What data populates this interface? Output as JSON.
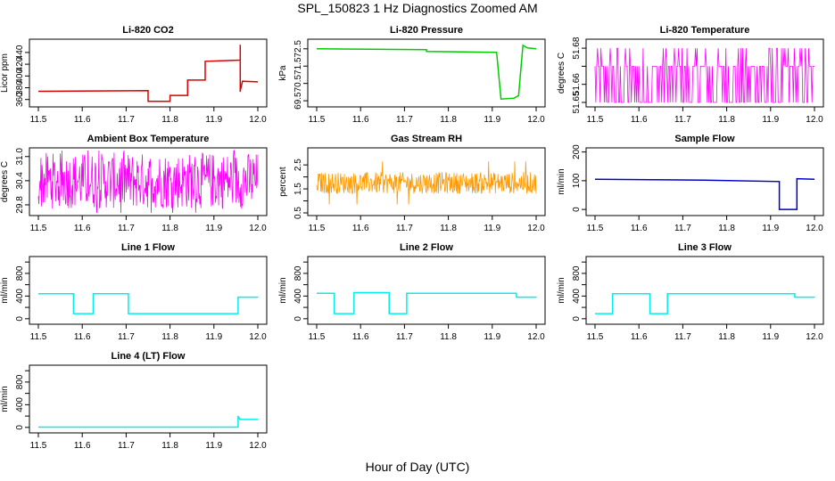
{
  "figure": {
    "title": "SPL_150823 1 Hz Diagnostics Zoomed AM",
    "xlabel": "Hour of Day (UTC)"
  },
  "chart_data": [
    {
      "type": "line",
      "title": "Li-820 CO2",
      "ylabel": "Licor ppm",
      "color": "#dd0000",
      "xlim": [
        11.5,
        12.0
      ],
      "ylim": [
        352,
        458
      ],
      "yticks": [
        "360",
        "380",
        "400",
        "420",
        "440"
      ],
      "xticks": [
        "11.5",
        "11.6",
        "11.7",
        "11.8",
        "11.9",
        "12.0"
      ],
      "x": [
        11.5,
        11.75,
        11.75,
        11.8,
        11.8,
        11.84,
        11.84,
        11.88,
        11.88,
        11.96,
        11.96,
        11.96,
        11.96,
        11.965,
        11.965,
        12.0
      ],
      "y": [
        374,
        375,
        357,
        357,
        367,
        367,
        393,
        393,
        425,
        427,
        453,
        373,
        375,
        391,
        391,
        390
      ]
    },
    {
      "type": "line",
      "title": "Li-820 Pressure",
      "ylabel": "kPa",
      "color": "#00cc00",
      "xlim": [
        11.5,
        12.0
      ],
      "ylim": [
        69.3,
        72.9
      ],
      "yticks": [
        "69.5",
        "70.5",
        "71.5",
        "72.5"
      ],
      "xticks": [
        "11.5",
        "11.6",
        "11.7",
        "11.8",
        "11.9",
        "12.0"
      ],
      "x": [
        11.5,
        11.75,
        11.75,
        11.91,
        11.92,
        11.95,
        11.96,
        11.97,
        11.98,
        12.0
      ],
      "y": [
        72.5,
        72.45,
        72.35,
        72.3,
        69.6,
        69.65,
        69.8,
        72.7,
        72.55,
        72.5
      ]
    },
    {
      "type": "line",
      "title": "Li-820 Temperature",
      "ylabel": "degrees C",
      "color": "#ff00ff",
      "xlim": [
        11.5,
        12.0
      ],
      "ylim": [
        51.649,
        51.6835
      ],
      "yticks": [
        "51.65",
        "51.66",
        "51.67",
        "51.68"
      ],
      "tick_labels_shown": [
        "51.65",
        "51.66",
        "51.68"
      ],
      "xticks": [
        "11.5",
        "11.6",
        "11.7",
        "11.8",
        "11.9",
        "12.0"
      ],
      "y_levels": [
        51.65,
        51.67,
        51.68
      ]
    },
    {
      "type": "line",
      "title": "Ambient Box Temperature",
      "ylabel": "degrees C",
      "color": "#ff00ff",
      "xlim": [
        11.5,
        12.0
      ],
      "ylim": [
        29.6,
        31.15
      ],
      "yticks": [
        "29.8",
        "30.4",
        "31.0"
      ],
      "tick_labels_shown": [
        "29.8",
        "30.4",
        "31.0"
      ],
      "xticks": [
        "11.5",
        "11.6",
        "11.7",
        "11.8",
        "11.9",
        "12.0"
      ],
      "y_range": [
        29.7,
        31.1
      ]
    },
    {
      "type": "line",
      "title": "Gas Stream RH",
      "ylabel": "percent",
      "color": "#ff9900",
      "xlim": [
        11.5,
        12.0
      ],
      "ylim": [
        0.5,
        3.1
      ],
      "yticks": [
        "0.5",
        "1.0",
        "1.5",
        "2.0",
        "2.5"
      ],
      "tick_labels_shown": [
        "0.5",
        "1.5",
        "2.5"
      ],
      "xticks": [
        "11.5",
        "11.6",
        "11.7",
        "11.8",
        "11.9",
        "12.0"
      ],
      "y_range": [
        1.3,
        2.2
      ]
    },
    {
      "type": "line",
      "title": "Sample Flow",
      "ylabel": "ml/min",
      "color": "#0000cc",
      "xlim": [
        11.5,
        12.0
      ],
      "ylim": [
        -12,
        205
      ],
      "yticks": [
        "0",
        "100",
        "200"
      ],
      "xticks": [
        "11.5",
        "11.6",
        "11.7",
        "11.8",
        "11.9",
        "12.0"
      ],
      "x": [
        11.5,
        11.75,
        11.92,
        11.92,
        11.96,
        11.96,
        12.0
      ],
      "y": [
        105,
        102,
        97,
        0,
        0,
        107,
        105
      ]
    },
    {
      "type": "line",
      "title": "Line 1 Flow",
      "ylabel": "ml/min",
      "color": "#00eeee",
      "xlim": [
        11.5,
        12.0
      ],
      "ylim": [
        -50,
        1050
      ],
      "yticks": [
        "0",
        "200",
        "400",
        "600",
        "800",
        "1000"
      ],
      "tick_labels_shown": [
        "0",
        "400",
        "800"
      ],
      "xticks": [
        "11.5",
        "11.6",
        "11.7",
        "11.8",
        "11.9",
        "12.0"
      ],
      "x": [
        11.5,
        11.58,
        11.58,
        11.625,
        11.625,
        11.705,
        11.705,
        11.955,
        11.955,
        12.0
      ],
      "y": [
        440,
        440,
        90,
        90,
        440,
        440,
        90,
        90,
        380,
        380
      ]
    },
    {
      "type": "line",
      "title": "Line 2 Flow",
      "ylabel": "ml/min",
      "color": "#00eeee",
      "xlim": [
        11.5,
        12.0
      ],
      "ylim": [
        -50,
        1050
      ],
      "yticks": [
        "0",
        "200",
        "400",
        "600",
        "800",
        "1000"
      ],
      "tick_labels_shown": [
        "0",
        "400",
        "800"
      ],
      "xticks": [
        "11.5",
        "11.6",
        "11.7",
        "11.8",
        "11.9",
        "12.0"
      ],
      "x": [
        11.5,
        11.54,
        11.54,
        11.585,
        11.585,
        11.665,
        11.665,
        11.705,
        11.705,
        11.955,
        11.955,
        12.0
      ],
      "y": [
        450,
        450,
        90,
        90,
        460,
        460,
        90,
        90,
        450,
        450,
        380,
        380
      ]
    },
    {
      "type": "line",
      "title": "Line 3 Flow",
      "ylabel": "ml/min",
      "color": "#00eeee",
      "xlim": [
        11.5,
        12.0
      ],
      "ylim": [
        -50,
        1050
      ],
      "yticks": [
        "0",
        "200",
        "400",
        "600",
        "800",
        "1000"
      ],
      "tick_labels_shown": [
        "0",
        "400",
        "800"
      ],
      "xticks": [
        "11.5",
        "11.6",
        "11.7",
        "11.8",
        "11.9",
        "12.0"
      ],
      "x": [
        11.5,
        11.54,
        11.54,
        11.625,
        11.625,
        11.665,
        11.665,
        11.955,
        11.955,
        12.0
      ],
      "y": [
        90,
        90,
        440,
        440,
        90,
        90,
        440,
        440,
        380,
        380
      ]
    },
    {
      "type": "line",
      "title": "Line 4 (LT) Flow",
      "ylabel": "ml/min",
      "color": "#00eeee",
      "xlim": [
        11.5,
        12.0
      ],
      "ylim": [
        -50,
        1050
      ],
      "yticks": [
        "0",
        "200",
        "400",
        "600",
        "800",
        "1000"
      ],
      "tick_labels_shown": [
        "0",
        "400",
        "800"
      ],
      "xticks": [
        "11.5",
        "11.6",
        "11.7",
        "11.8",
        "11.9",
        "12.0"
      ],
      "x": [
        11.5,
        11.955,
        11.955,
        11.96,
        11.96,
        12.0
      ],
      "y": [
        5,
        5,
        200,
        130,
        140,
        140
      ]
    }
  ]
}
